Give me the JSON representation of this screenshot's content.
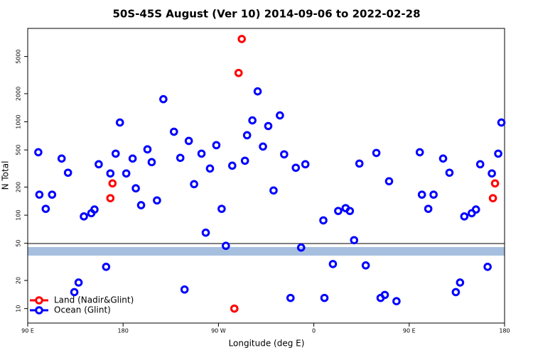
{
  "chart_data": {
    "type": "scatter",
    "title": "50S-45S August (Ver 10)   2014-09-06 to 2022-02-28",
    "x_label": "Longitude (deg E)",
    "y_label": "N Total",
    "log_y": true,
    "legend": "bottom-left",
    "xlim": [
      90,
      540
    ],
    "xticks": [
      {
        "value": 90,
        "label": "90 E"
      },
      180,
      {
        "value": 270,
        "label": "90 W"
      },
      {
        "value": 360,
        "label": "0"
      },
      {
        "value": 450,
        "label": "90 E"
      },
      {
        "value": 540,
        "label": "180"
      }
    ],
    "ylim": [
      7,
      10000
    ],
    "yticks": [
      10,
      20,
      50,
      100,
      200,
      500,
      1000,
      2000,
      5000
    ],
    "series": [
      {
        "name": "Land (Nadir&Glint)",
        "color": "#ff0000",
        "x": [
          168,
          170,
          285,
          289,
          292,
          529,
          531
        ],
        "values": [
          152,
          219,
          10,
          3334,
          7700,
          152,
          219
        ]
      },
      {
        "name": "Ocean (Glint)",
        "color": "#0000ff",
        "x": [
          100,
          101,
          107,
          113,
          122,
          128,
          134,
          138,
          143,
          150,
          153,
          157,
          164,
          168,
          173,
          177,
          183,
          189,
          192,
          197,
          203,
          207,
          212,
          218,
          228,
          234,
          238,
          242,
          247,
          254,
          258,
          262,
          268,
          273,
          277,
          283,
          295,
          297,
          302,
          307,
          312,
          317,
          322,
          328,
          332,
          338,
          343,
          348,
          352,
          369,
          370,
          378,
          383,
          390,
          394,
          398,
          403,
          409,
          419,
          423,
          427,
          431,
          438,
          460,
          462,
          468,
          473,
          482,
          488,
          494,
          498,
          502,
          509,
          513,
          517,
          524,
          528,
          534,
          537
        ],
        "values": [
          472,
          166,
          117,
          166,
          404,
          285,
          15,
          19,
          97,
          105,
          115,
          351,
          28,
          280,
          456,
          982,
          280,
          404,
          194,
          128,
          507,
          370,
          144,
          1747,
          783,
          411,
          16,
          624,
          215,
          456,
          65,
          316,
          562,
          117,
          47,
          339,
          383,
          718,
          1035,
          2117,
          543,
          901,
          184,
          1170,
          448,
          13,
          322,
          45,
          351,
          88,
          13,
          30,
          111,
          119,
          111,
          54,
          357,
          29,
          464,
          13,
          14,
          231,
          12,
          472,
          166,
          117,
          166,
          404,
          285,
          15,
          19,
          97,
          105,
          115,
          351,
          28,
          280,
          456,
          982
        ]
      }
    ]
  }
}
